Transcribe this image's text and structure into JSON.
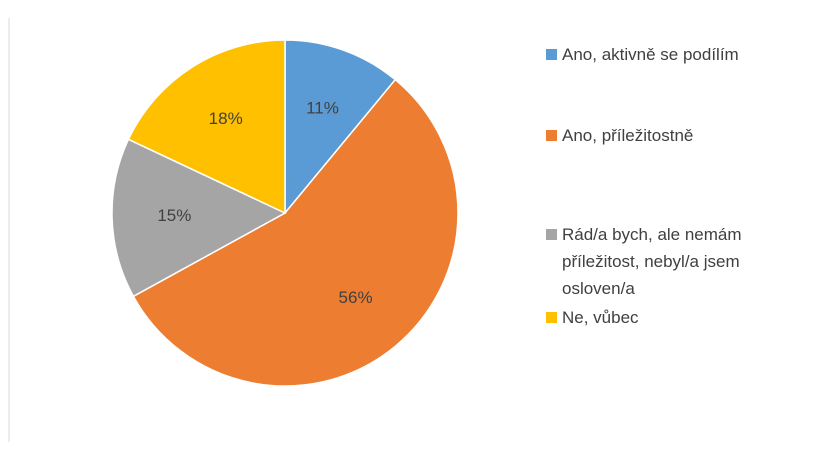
{
  "chart_data": {
    "type": "pie",
    "categories": [
      "Ano, aktivně se podílím",
      "Ano, příležitostně",
      "Rád/a bych, ale nemám příležitost, nebyl/a jsem osloven/a",
      "Ne, vůbec"
    ],
    "values": [
      11,
      56,
      15,
      18
    ],
    "value_labels": [
      "11%",
      "56%",
      "15%",
      "18%"
    ],
    "colors": [
      "#5B9BD5",
      "#ED7D31",
      "#A5A5A5",
      "#FFC000"
    ],
    "legend": "right"
  }
}
